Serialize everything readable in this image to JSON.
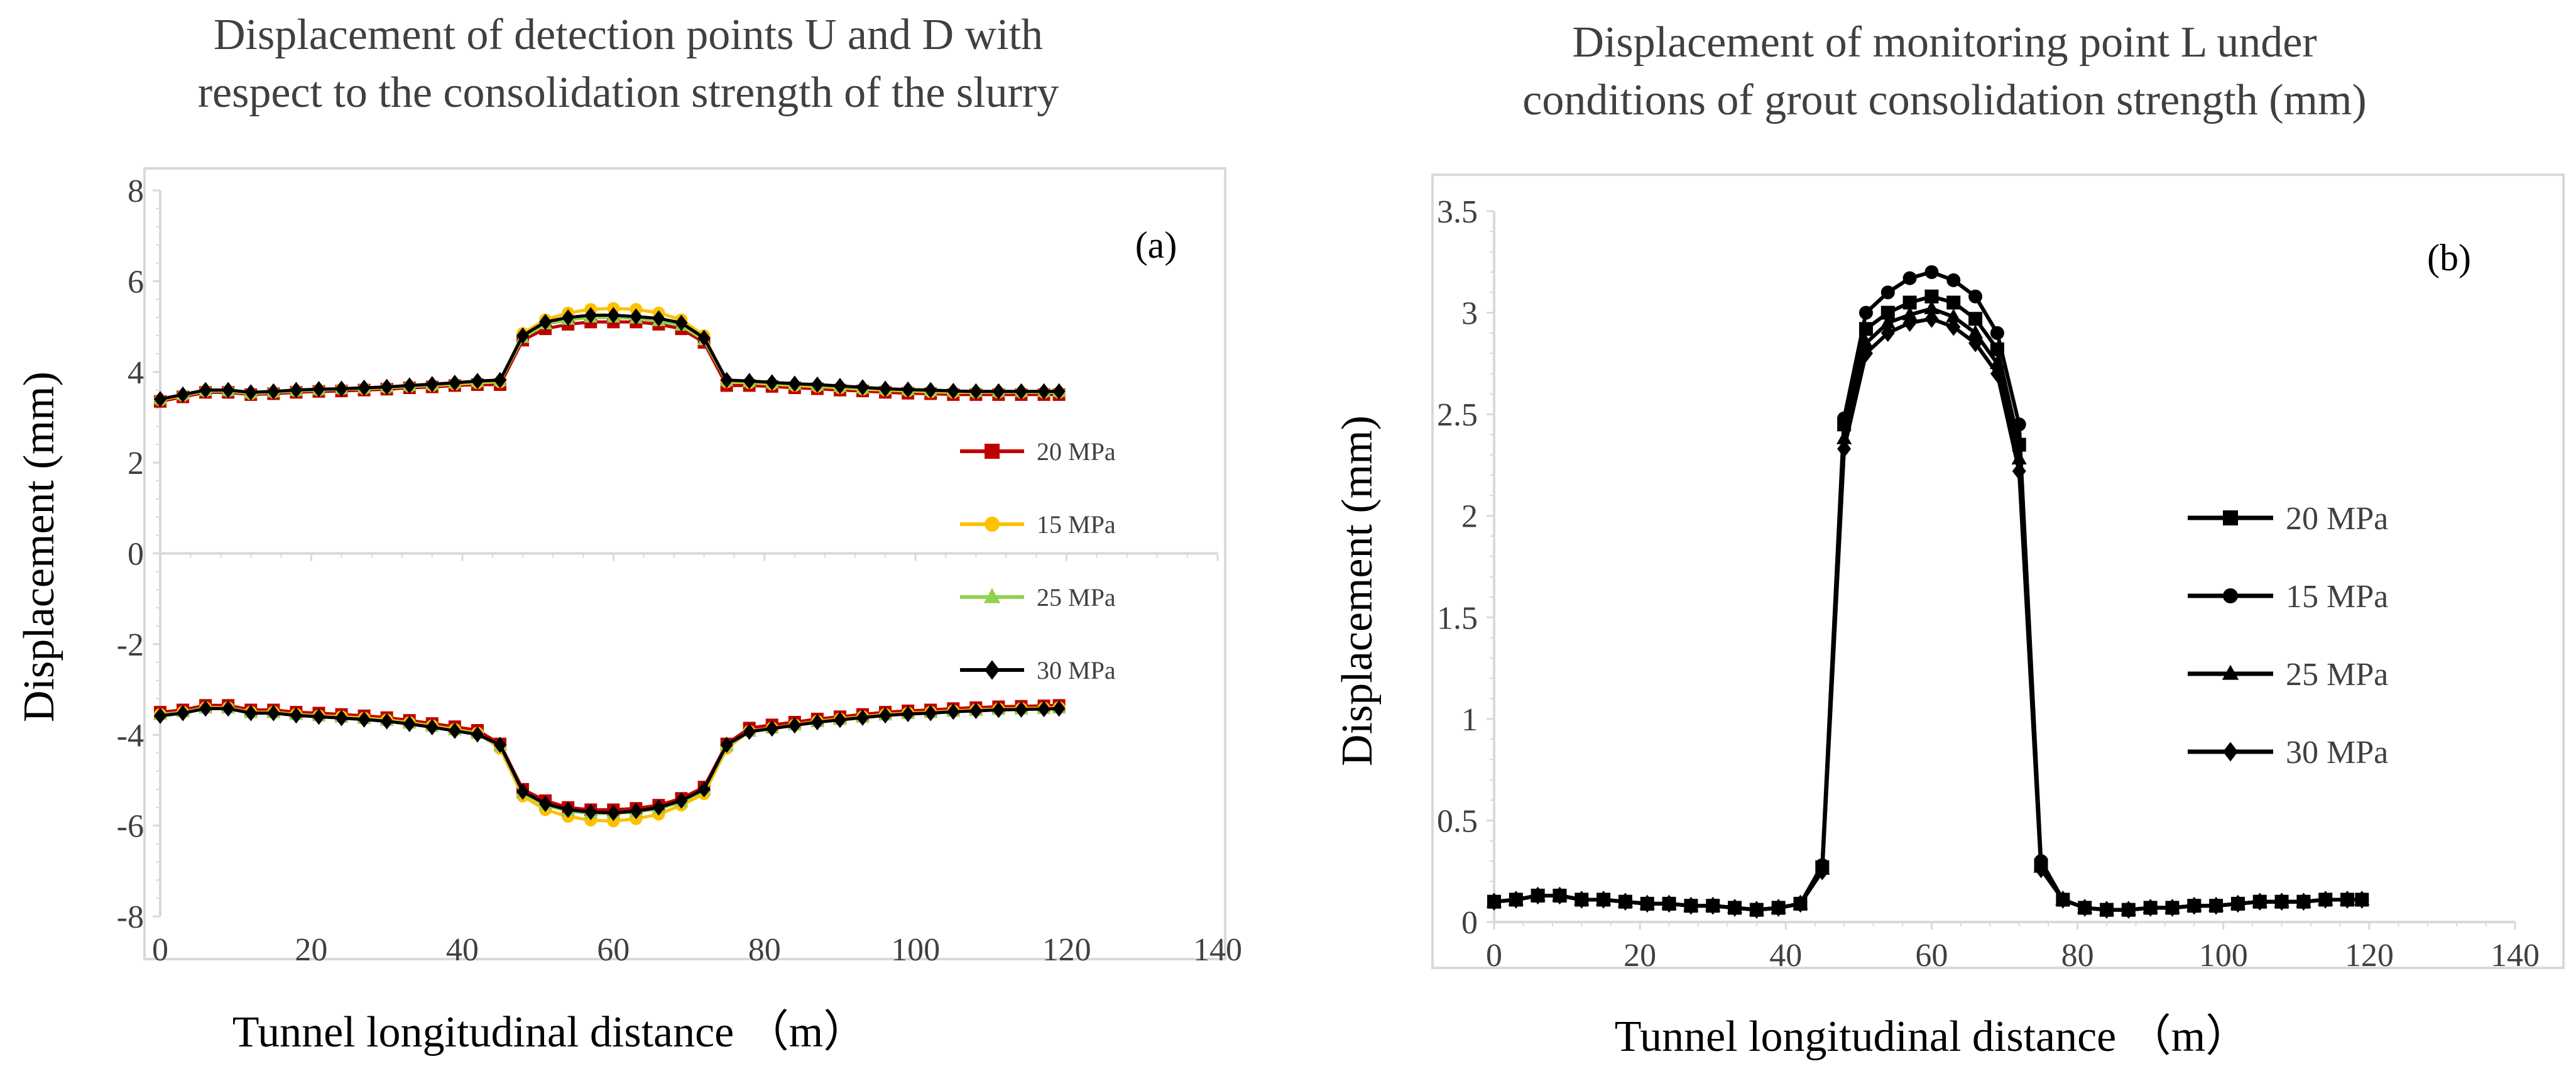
{
  "chart_data": [
    {
      "type": "line",
      "panel_label": "(a)",
      "title": [
        "Displacement of detection points U and D with",
        "respect to the consolidation strength of the slurry"
      ],
      "xlabel": "Tunnel longitudinal distance （m）",
      "ylabel": "Displacement (mm)",
      "xlim": [
        0,
        140
      ],
      "ylim": [
        -8,
        8
      ],
      "xticks": [
        0,
        20,
        40,
        60,
        80,
        100,
        120,
        140
      ],
      "yticks": [
        -8,
        -6,
        -4,
        -2,
        0,
        2,
        4,
        6,
        8
      ],
      "grid": false,
      "legend_position": "right",
      "x": [
        0,
        3,
        6,
        9,
        12,
        15,
        18,
        21,
        24,
        27,
        30,
        33,
        36,
        39,
        42,
        45,
        48,
        51,
        54,
        57,
        60,
        63,
        66,
        69,
        72,
        75,
        78,
        81,
        84,
        87,
        90,
        93,
        96,
        99,
        102,
        105,
        108,
        111,
        114,
        117,
        119
      ],
      "series": [
        {
          "name": "20 MPa",
          "color": "#c00000",
          "marker": "square",
          "group": "U",
          "values": [
            3.35,
            3.45,
            3.55,
            3.55,
            3.5,
            3.52,
            3.55,
            3.57,
            3.58,
            3.6,
            3.62,
            3.65,
            3.67,
            3.7,
            3.72,
            3.72,
            4.7,
            4.95,
            5.05,
            5.1,
            5.1,
            5.1,
            5.05,
            4.95,
            4.65,
            3.7,
            3.7,
            3.68,
            3.65,
            3.63,
            3.6,
            3.58,
            3.55,
            3.53,
            3.52,
            3.5,
            3.5,
            3.5,
            3.5,
            3.5,
            3.5
          ]
        },
        {
          "name": "15 MPa",
          "color": "#ffc000",
          "marker": "circle",
          "group": "U",
          "values": [
            3.38,
            3.48,
            3.58,
            3.58,
            3.52,
            3.55,
            3.58,
            3.6,
            3.62,
            3.63,
            3.65,
            3.68,
            3.7,
            3.73,
            3.76,
            3.78,
            4.85,
            5.15,
            5.3,
            5.38,
            5.4,
            5.38,
            5.3,
            5.15,
            4.8,
            3.78,
            3.76,
            3.73,
            3.7,
            3.68,
            3.65,
            3.62,
            3.6,
            3.58,
            3.56,
            3.55,
            3.55,
            3.55,
            3.55,
            3.55,
            3.55
          ]
        },
        {
          "name": "25 MPa",
          "color": "#92d050",
          "marker": "triangle",
          "group": "U",
          "values": [
            3.4,
            3.5,
            3.58,
            3.58,
            3.53,
            3.55,
            3.58,
            3.6,
            3.62,
            3.64,
            3.66,
            3.69,
            3.72,
            3.75,
            3.78,
            3.8,
            4.75,
            5.05,
            5.15,
            5.2,
            5.2,
            5.18,
            5.12,
            5.02,
            4.7,
            3.8,
            3.78,
            3.75,
            3.72,
            3.7,
            3.67,
            3.64,
            3.62,
            3.6,
            3.58,
            3.57,
            3.56,
            3.56,
            3.56,
            3.56,
            3.56
          ]
        },
        {
          "name": "30 MPa",
          "color": "#000000",
          "marker": "diamond",
          "group": "U",
          "values": [
            3.4,
            3.5,
            3.6,
            3.6,
            3.55,
            3.57,
            3.6,
            3.62,
            3.63,
            3.65,
            3.67,
            3.7,
            3.73,
            3.76,
            3.8,
            3.82,
            4.8,
            5.1,
            5.2,
            5.25,
            5.25,
            5.22,
            5.18,
            5.08,
            4.75,
            3.82,
            3.8,
            3.77,
            3.74,
            3.72,
            3.69,
            3.66,
            3.63,
            3.61,
            3.6,
            3.58,
            3.57,
            3.57,
            3.57,
            3.57,
            3.57
          ]
        },
        {
          "name": "20 MPa",
          "color": "#c00000",
          "marker": "square",
          "group": "D",
          "values": [
            -3.5,
            -3.45,
            -3.35,
            -3.35,
            -3.45,
            -3.45,
            -3.5,
            -3.52,
            -3.55,
            -3.58,
            -3.62,
            -3.68,
            -3.75,
            -3.82,
            -3.9,
            -4.2,
            -5.2,
            -5.45,
            -5.6,
            -5.65,
            -5.65,
            -5.62,
            -5.55,
            -5.4,
            -5.15,
            -4.2,
            -3.85,
            -3.78,
            -3.72,
            -3.65,
            -3.6,
            -3.55,
            -3.5,
            -3.47,
            -3.45,
            -3.42,
            -3.4,
            -3.38,
            -3.37,
            -3.36,
            -3.35
          ]
        },
        {
          "name": "15 MPa",
          "color": "#ffc000",
          "marker": "circle",
          "group": "D",
          "values": [
            -3.55,
            -3.5,
            -3.4,
            -3.4,
            -3.5,
            -3.5,
            -3.55,
            -3.58,
            -3.6,
            -3.63,
            -3.67,
            -3.73,
            -3.8,
            -3.88,
            -3.96,
            -4.3,
            -5.35,
            -5.65,
            -5.8,
            -5.88,
            -5.9,
            -5.85,
            -5.75,
            -5.55,
            -5.3,
            -4.3,
            -3.92,
            -3.85,
            -3.78,
            -3.7,
            -3.65,
            -3.6,
            -3.55,
            -3.52,
            -3.5,
            -3.47,
            -3.45,
            -3.43,
            -3.42,
            -3.41,
            -3.4
          ]
        },
        {
          "name": "25 MPa",
          "color": "#92d050",
          "marker": "triangle",
          "group": "D",
          "values": [
            -3.56,
            -3.5,
            -3.42,
            -3.42,
            -3.52,
            -3.52,
            -3.56,
            -3.59,
            -3.62,
            -3.65,
            -3.69,
            -3.75,
            -3.82,
            -3.9,
            -3.98,
            -4.25,
            -5.28,
            -5.55,
            -5.68,
            -5.73,
            -5.73,
            -5.7,
            -5.63,
            -5.48,
            -5.22,
            -4.25,
            -3.93,
            -3.86,
            -3.79,
            -3.72,
            -3.67,
            -3.62,
            -3.57,
            -3.54,
            -3.52,
            -3.49,
            -3.47,
            -3.45,
            -3.44,
            -3.43,
            -3.42
          ]
        },
        {
          "name": "30 MPa",
          "color": "#000000",
          "marker": "diamond",
          "group": "D",
          "values": [
            -3.58,
            -3.52,
            -3.42,
            -3.42,
            -3.52,
            -3.52,
            -3.57,
            -3.6,
            -3.63,
            -3.66,
            -3.7,
            -3.76,
            -3.83,
            -3.91,
            -3.99,
            -4.22,
            -5.25,
            -5.52,
            -5.65,
            -5.7,
            -5.72,
            -5.68,
            -5.6,
            -5.45,
            -5.2,
            -4.22,
            -3.93,
            -3.86,
            -3.79,
            -3.72,
            -3.67,
            -3.62,
            -3.57,
            -3.54,
            -3.52,
            -3.49,
            -3.47,
            -3.45,
            -3.44,
            -3.43,
            -3.42
          ]
        }
      ]
    },
    {
      "type": "line",
      "panel_label": "(b)",
      "title": [
        "Displacement of monitoring point L under",
        "conditions of grout consolidation strength (mm)"
      ],
      "xlabel": "Tunnel longitudinal distance （m）",
      "ylabel": "Displacement (mm)",
      "xlim": [
        0,
        140
      ],
      "ylim": [
        0,
        3.5
      ],
      "xticks": [
        0,
        20,
        40,
        60,
        80,
        100,
        120,
        140
      ],
      "yticks": [
        0,
        0.5,
        1,
        1.5,
        2,
        2.5,
        3,
        3.5
      ],
      "grid": false,
      "legend_position": "right",
      "x": [
        0,
        3,
        6,
        9,
        12,
        15,
        18,
        21,
        24,
        27,
        30,
        33,
        36,
        39,
        42,
        45,
        48,
        51,
        54,
        57,
        60,
        63,
        66,
        69,
        72,
        75,
        78,
        81,
        84,
        87,
        90,
        93,
        96,
        99,
        102,
        105,
        108,
        111,
        114,
        117,
        119
      ],
      "series": [
        {
          "name": "20 MPa",
          "color": "#000000",
          "marker": "square",
          "values": [
            0.1,
            0.11,
            0.13,
            0.13,
            0.11,
            0.11,
            0.1,
            0.09,
            0.09,
            0.08,
            0.08,
            0.07,
            0.06,
            0.07,
            0.09,
            0.27,
            2.45,
            2.92,
            3.0,
            3.05,
            3.08,
            3.05,
            2.97,
            2.82,
            2.35,
            0.28,
            0.11,
            0.07,
            0.06,
            0.06,
            0.07,
            0.07,
            0.08,
            0.08,
            0.09,
            0.1,
            0.1,
            0.1,
            0.11,
            0.11,
            0.11
          ]
        },
        {
          "name": "15 MPa",
          "color": "#000000",
          "marker": "circle",
          "values": [
            0.1,
            0.11,
            0.13,
            0.13,
            0.11,
            0.11,
            0.1,
            0.09,
            0.09,
            0.08,
            0.08,
            0.07,
            0.06,
            0.07,
            0.09,
            0.28,
            2.48,
            3.0,
            3.1,
            3.17,
            3.2,
            3.16,
            3.08,
            2.9,
            2.45,
            0.3,
            0.11,
            0.07,
            0.06,
            0.06,
            0.07,
            0.07,
            0.08,
            0.08,
            0.09,
            0.1,
            0.1,
            0.1,
            0.11,
            0.11,
            0.11
          ]
        },
        {
          "name": "25 MPa",
          "color": "#000000",
          "marker": "triangle",
          "values": [
            0.1,
            0.11,
            0.13,
            0.13,
            0.11,
            0.11,
            0.1,
            0.09,
            0.09,
            0.08,
            0.08,
            0.07,
            0.06,
            0.07,
            0.09,
            0.26,
            2.38,
            2.85,
            2.95,
            2.99,
            3.02,
            2.98,
            2.9,
            2.75,
            2.28,
            0.27,
            0.11,
            0.07,
            0.06,
            0.06,
            0.07,
            0.07,
            0.08,
            0.08,
            0.09,
            0.1,
            0.1,
            0.1,
            0.11,
            0.11,
            0.11
          ]
        },
        {
          "name": "30 MPa",
          "color": "#000000",
          "marker": "diamond",
          "values": [
            0.1,
            0.11,
            0.13,
            0.13,
            0.11,
            0.11,
            0.1,
            0.09,
            0.09,
            0.08,
            0.08,
            0.07,
            0.06,
            0.07,
            0.09,
            0.25,
            2.33,
            2.8,
            2.9,
            2.95,
            2.97,
            2.93,
            2.85,
            2.7,
            2.22,
            0.26,
            0.11,
            0.07,
            0.06,
            0.06,
            0.07,
            0.07,
            0.08,
            0.08,
            0.09,
            0.1,
            0.1,
            0.1,
            0.11,
            0.11,
            0.11
          ]
        }
      ]
    }
  ]
}
